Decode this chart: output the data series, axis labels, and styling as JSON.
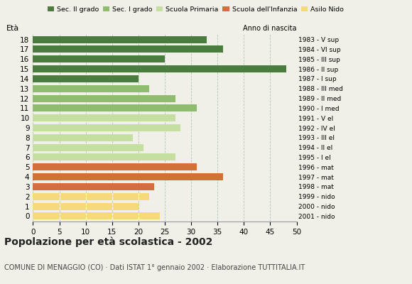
{
  "ages": [
    18,
    17,
    16,
    15,
    14,
    13,
    12,
    11,
    10,
    9,
    8,
    7,
    6,
    5,
    4,
    3,
    2,
    1,
    0
  ],
  "values": [
    33,
    36,
    25,
    48,
    20,
    22,
    27,
    31,
    27,
    28,
    19,
    21,
    27,
    31,
    36,
    23,
    22,
    20,
    24
  ],
  "colors": [
    "#4a7c3f",
    "#4a7c3f",
    "#4a7c3f",
    "#4a7c3f",
    "#4a7c3f",
    "#8fbc6e",
    "#8fbc6e",
    "#8fbc6e",
    "#c5dfa0",
    "#c5dfa0",
    "#c5dfa0",
    "#c5dfa0",
    "#c5dfa0",
    "#d2703a",
    "#d2703a",
    "#d2703a",
    "#f5d97a",
    "#f5d97a",
    "#f5d97a"
  ],
  "right_labels": [
    "1983 - V sup",
    "1984 - VI sup",
    "1985 - III sup",
    "1986 - II sup",
    "1987 - I sup",
    "1988 - III med",
    "1989 - II med",
    "1990 - I med",
    "1991 - V el",
    "1992 - IV el",
    "1993 - III el",
    "1994 - II el",
    "1995 - I el",
    "1996 - mat",
    "1997 - mat",
    "1998 - mat",
    "1999 - nido",
    "2000 - nido",
    "2001 - nido"
  ],
  "legend_labels": [
    "Sec. II grado",
    "Sec. I grado",
    "Scuola Primaria",
    "Scuola dell'Infanzia",
    "Asilo Nido"
  ],
  "legend_colors": [
    "#4a7c3f",
    "#8fbc6e",
    "#c5dfa0",
    "#d2703a",
    "#f5d97a"
  ],
  "ylabel": "Età",
  "title": "Popolazione per età scolastica - 2002",
  "subtitle": "COMUNE DI MENAGGIO (CO) · Dati ISTAT 1° gennaio 2002 · Elaborazione TUTTITALIA.IT",
  "anno_label": "Anno di nascita",
  "xlim": [
    0,
    50
  ],
  "xticks": [
    0,
    5,
    10,
    15,
    20,
    25,
    30,
    35,
    40,
    45,
    50
  ],
  "bg_color": "#f0f0e8",
  "bar_height": 0.72,
  "grid_color": "#b0c8b0"
}
